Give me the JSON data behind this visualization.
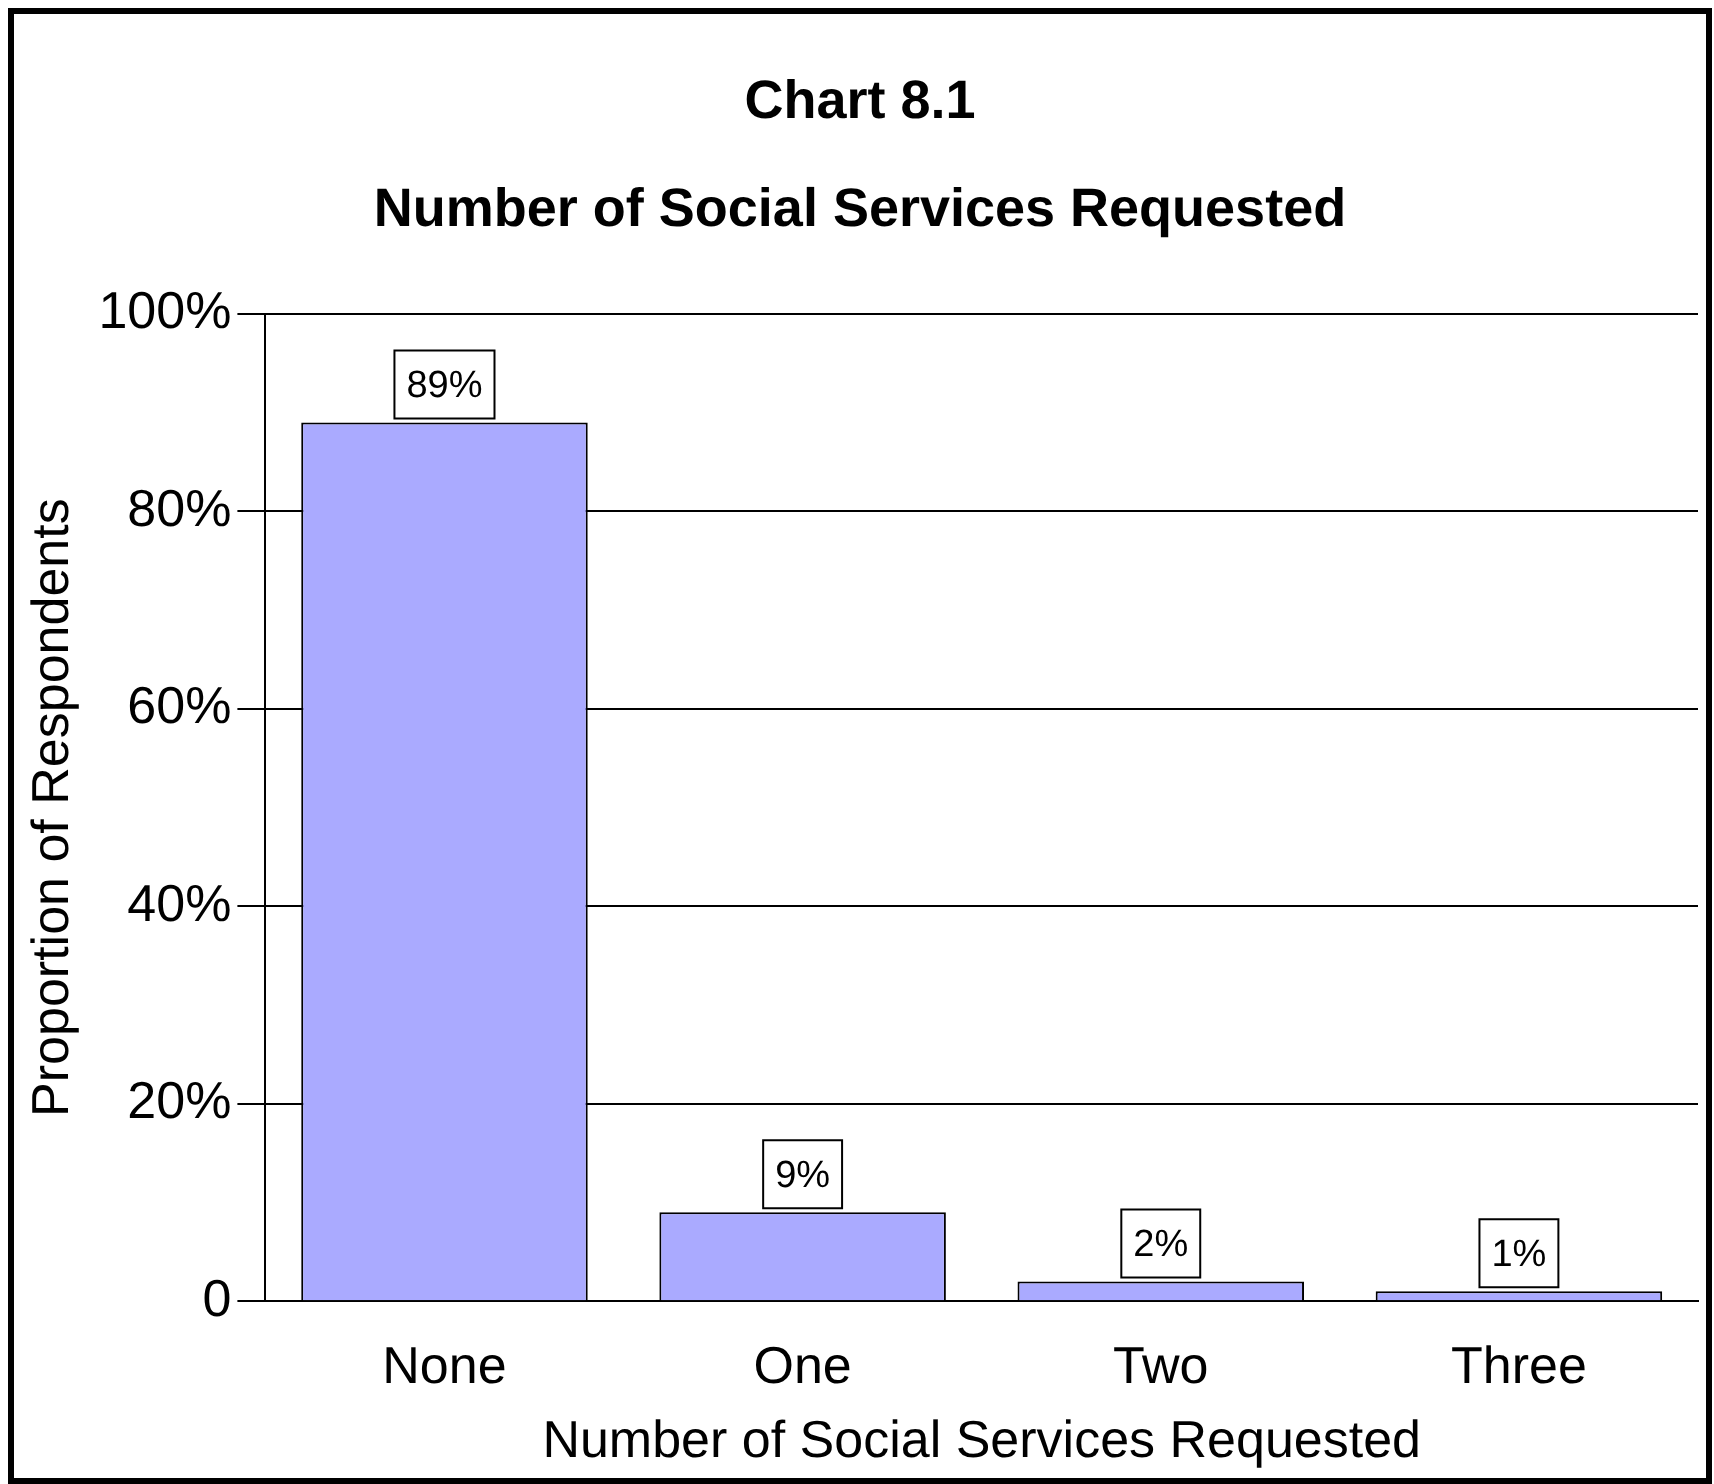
{
  "chart_data": {
    "type": "bar",
    "title": "Chart 8.1",
    "subtitle": "Number of Social Services Requested",
    "xlabel": "Number of Social Services Requested",
    "ylabel": "Proportion of Respondents",
    "categories": [
      "None",
      "One",
      "Two",
      "Three"
    ],
    "value_labels": [
      "89%",
      "9%",
      "2%",
      "1%"
    ],
    "values": [
      89,
      9,
      2,
      1
    ],
    "color": "#aaaaff",
    "ylim": [
      0,
      100
    ],
    "yticks": [
      {
        "value": 0,
        "label": "0"
      },
      {
        "value": 20,
        "label": "20%"
      },
      {
        "value": 40,
        "label": "40%"
      },
      {
        "value": 60,
        "label": "60%"
      },
      {
        "value": 80,
        "label": "80%"
      },
      {
        "value": 100,
        "label": "100%"
      }
    ],
    "grid": "y",
    "legend": false
  }
}
